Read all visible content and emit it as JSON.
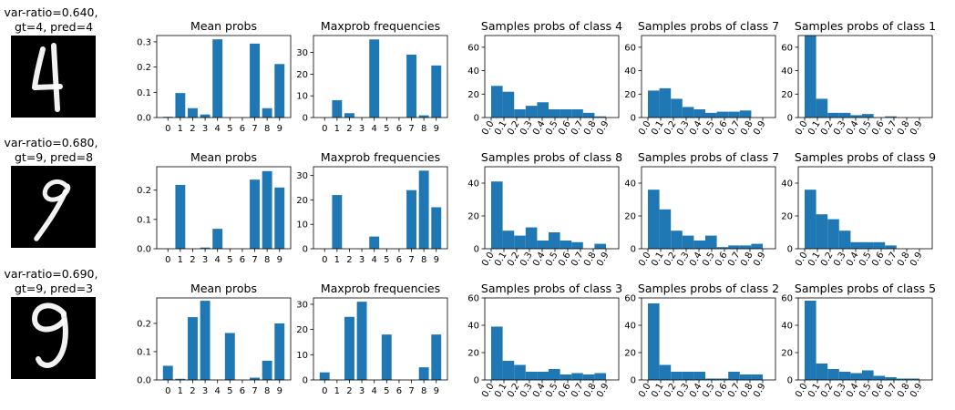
{
  "colors": {
    "bar": "#1f77b4",
    "digit_bg": "#000000",
    "digit_ink": "#ffffff"
  },
  "rows": [
    {
      "label_line1": "var-ratio=0.640,",
      "label_line2": "gt=4, pred=4",
      "digit_icon": "digit-4-image"
    },
    {
      "label_line1": "var-ratio=0.680,",
      "label_line2": "gt=9, pred=8",
      "digit_icon": "digit-9-image"
    },
    {
      "label_line1": "var-ratio=0.690,",
      "label_line2": "gt=9, pred=3",
      "digit_icon": "digit-9-image"
    }
  ],
  "chart_data": [
    {
      "row": 0,
      "col": 0,
      "type": "bar",
      "title": "Mean probs",
      "categories": [
        "0",
        "1",
        "2",
        "3",
        "4",
        "5",
        "6",
        "7",
        "8",
        "9"
      ],
      "values": [
        0.003,
        0.097,
        0.037,
        0.012,
        0.31,
        0.0,
        0.0,
        0.293,
        0.037,
        0.212
      ],
      "ylim": [
        0,
        0.325
      ],
      "yticks": [
        0.0,
        0.1,
        0.2,
        0.3
      ],
      "ytick_labels": [
        "0.0",
        "0.1",
        "0.2",
        "0.3"
      ]
    },
    {
      "row": 0,
      "col": 1,
      "type": "bar",
      "title": "Maxprob frequencies",
      "categories": [
        "0",
        "1",
        "2",
        "3",
        "4",
        "5",
        "6",
        "7",
        "8",
        "9"
      ],
      "values": [
        0,
        8,
        2,
        0,
        36,
        0,
        0,
        29,
        1,
        24
      ],
      "ylim": [
        0,
        37.8
      ],
      "yticks": [
        0,
        10,
        20,
        30
      ],
      "ytick_labels": [
        "0",
        "10",
        "20",
        "30"
      ]
    },
    {
      "row": 0,
      "col": 2,
      "type": "bar",
      "title": "Samples probs of class 4",
      "x_kind": "hist",
      "bins": 10,
      "xlim": [
        -0.05,
        1.0
      ],
      "xtick_labels": [
        "0.0",
        "0.1",
        "0.2",
        "0.3",
        "0.4",
        "0.5",
        "0.6",
        "0.7",
        "0.8",
        "0.9"
      ],
      "values": [
        27,
        22,
        7,
        10,
        13,
        7,
        7,
        7,
        4,
        1
      ],
      "ylim": [
        0,
        70
      ],
      "yticks": [
        0,
        20,
        40,
        60
      ],
      "ytick_labels": [
        "0",
        "20",
        "40",
        "60"
      ]
    },
    {
      "row": 0,
      "col": 3,
      "type": "bar",
      "title": "Samples probs of class 7",
      "x_kind": "hist",
      "bins": 10,
      "xlim": [
        -0.05,
        1.0
      ],
      "xtick_labels": [
        "0.0",
        "0.1",
        "0.2",
        "0.3",
        "0.4",
        "0.5",
        "0.6",
        "0.7",
        "0.8",
        "0.9"
      ],
      "values": [
        23,
        25,
        16,
        9,
        7,
        4,
        5,
        5,
        6,
        0
      ],
      "ylim": [
        0,
        70
      ],
      "yticks": [
        0,
        20,
        40,
        60
      ],
      "ytick_labels": [
        "0",
        "20",
        "40",
        "60"
      ]
    },
    {
      "row": 0,
      "col": 4,
      "type": "bar",
      "title": "Samples probs of class 1",
      "x_kind": "hist",
      "bins": 10,
      "xlim": [
        -0.05,
        1.0
      ],
      "xtick_labels": [
        "0.0",
        "0.1",
        "0.2",
        "0.3",
        "0.4",
        "0.5",
        "0.6",
        "0.7",
        "0.8",
        "0.9"
      ],
      "values": [
        70,
        16,
        4,
        4,
        2,
        3,
        0,
        1,
        0,
        0
      ],
      "ylim": [
        0,
        70
      ],
      "yticks": [
        0,
        20,
        40,
        60
      ],
      "ytick_labels": [
        "0",
        "20",
        "40",
        "60"
      ]
    },
    {
      "row": 1,
      "col": 0,
      "type": "bar",
      "title": "Mean probs",
      "categories": [
        "0",
        "1",
        "2",
        "3",
        "4",
        "5",
        "6",
        "7",
        "8",
        "9"
      ],
      "values": [
        0.0,
        0.218,
        0.0,
        0.004,
        0.068,
        0.0,
        0.0,
        0.236,
        0.265,
        0.209
      ],
      "ylim": [
        0,
        0.28
      ],
      "yticks": [
        0.0,
        0.1,
        0.2
      ],
      "ytick_labels": [
        "0.0",
        "0.1",
        "0.2"
      ]
    },
    {
      "row": 1,
      "col": 1,
      "type": "bar",
      "title": "Maxprob frequencies",
      "categories": [
        "0",
        "1",
        "2",
        "3",
        "4",
        "5",
        "6",
        "7",
        "8",
        "9"
      ],
      "values": [
        0,
        22,
        0,
        0,
        5,
        0,
        0,
        24,
        32,
        17
      ],
      "ylim": [
        0,
        33.6
      ],
      "yticks": [
        0,
        10,
        20,
        30
      ],
      "ytick_labels": [
        "0",
        "10",
        "20",
        "30"
      ]
    },
    {
      "row": 1,
      "col": 2,
      "type": "bar",
      "title": "Samples probs of class 8",
      "x_kind": "hist",
      "bins": 10,
      "xlim": [
        -0.05,
        1.0
      ],
      "xtick_labels": [
        "0.0",
        "0.1",
        "0.2",
        "0.3",
        "0.4",
        "0.5",
        "0.6",
        "0.7",
        "0.8",
        "0.9"
      ],
      "values": [
        41,
        11,
        8,
        13,
        5,
        10,
        5,
        4,
        0,
        3
      ],
      "ylim": [
        0,
        50
      ],
      "yticks": [
        0,
        20,
        40
      ],
      "ytick_labels": [
        "0",
        "20",
        "40"
      ]
    },
    {
      "row": 1,
      "col": 3,
      "type": "bar",
      "title": "Samples probs of class 7",
      "x_kind": "hist",
      "bins": 10,
      "xlim": [
        -0.05,
        1.0
      ],
      "xtick_labels": [
        "0.0",
        "0.1",
        "0.2",
        "0.3",
        "0.4",
        "0.5",
        "0.6",
        "0.7",
        "0.8",
        "0.9"
      ],
      "values": [
        36,
        24,
        11,
        8,
        5,
        8,
        1,
        2,
        2,
        3
      ],
      "ylim": [
        0,
        50
      ],
      "yticks": [
        0,
        20,
        40
      ],
      "ytick_labels": [
        "0",
        "20",
        "40"
      ]
    },
    {
      "row": 1,
      "col": 4,
      "type": "bar",
      "title": "Samples probs of class 9",
      "x_kind": "hist",
      "bins": 10,
      "xlim": [
        -0.05,
        1.0
      ],
      "xtick_labels": [
        "0.0",
        "0.1",
        "0.2",
        "0.3",
        "0.4",
        "0.5",
        "0.6",
        "0.7",
        "0.8",
        "0.9"
      ],
      "values": [
        36,
        21,
        18,
        11,
        4,
        4,
        4,
        2,
        0,
        0
      ],
      "ylim": [
        0,
        50
      ],
      "yticks": [
        0,
        20,
        40
      ],
      "ytick_labels": [
        "0",
        "20",
        "40"
      ]
    },
    {
      "row": 2,
      "col": 0,
      "type": "bar",
      "title": "Mean probs",
      "categories": [
        "0",
        "1",
        "2",
        "3",
        "4",
        "5",
        "6",
        "7",
        "8",
        "9"
      ],
      "values": [
        0.05,
        0.004,
        0.222,
        0.28,
        0.0,
        0.166,
        0.0,
        0.008,
        0.068,
        0.2
      ],
      "ylim": [
        0,
        0.29
      ],
      "yticks": [
        0.0,
        0.1,
        0.2
      ],
      "ytick_labels": [
        "0.0",
        "0.1",
        "0.2"
      ]
    },
    {
      "row": 2,
      "col": 1,
      "type": "bar",
      "title": "Maxprob frequencies",
      "categories": [
        "0",
        "1",
        "2",
        "3",
        "4",
        "5",
        "6",
        "7",
        "8",
        "9"
      ],
      "values": [
        3,
        0,
        25,
        31,
        0,
        18,
        0,
        0,
        5,
        18
      ],
      "ylim": [
        0,
        32.5
      ],
      "yticks": [
        0,
        10,
        20,
        30
      ],
      "ytick_labels": [
        "0",
        "10",
        "20",
        "30"
      ]
    },
    {
      "row": 2,
      "col": 2,
      "type": "bar",
      "title": "Samples probs of class 3",
      "x_kind": "hist",
      "bins": 10,
      "xlim": [
        -0.05,
        1.0
      ],
      "xtick_labels": [
        "0.0",
        "0.1",
        "0.2",
        "0.3",
        "0.4",
        "0.5",
        "0.6",
        "0.7",
        "0.8",
        "0.9"
      ],
      "values": [
        39,
        14,
        11,
        6,
        6,
        8,
        4,
        5,
        4,
        5
      ],
      "ylim": [
        0,
        60
      ],
      "yticks": [
        0,
        20,
        40,
        60
      ],
      "ytick_labels": [
        "0",
        "20",
        "40",
        "60"
      ]
    },
    {
      "row": 2,
      "col": 3,
      "type": "bar",
      "title": "Samples probs of class 2",
      "x_kind": "hist",
      "bins": 10,
      "xlim": [
        -0.05,
        1.0
      ],
      "xtick_labels": [
        "0.0",
        "0.1",
        "0.2",
        "0.3",
        "0.4",
        "0.5",
        "0.6",
        "0.7",
        "0.8",
        "0.9"
      ],
      "values": [
        56,
        11,
        6,
        6,
        6,
        1,
        1,
        6,
        4,
        4
      ],
      "ylim": [
        0,
        60
      ],
      "yticks": [
        0,
        20,
        40,
        60
      ],
      "ytick_labels": [
        "0",
        "20",
        "40",
        "60"
      ]
    },
    {
      "row": 2,
      "col": 4,
      "type": "bar",
      "title": "Samples probs of class 5",
      "x_kind": "hist",
      "bins": 10,
      "xlim": [
        -0.05,
        1.0
      ],
      "xtick_labels": [
        "0.0",
        "0.1",
        "0.2",
        "0.3",
        "0.4",
        "0.5",
        "0.6",
        "0.7",
        "0.8",
        "0.9"
      ],
      "values": [
        58,
        12,
        8,
        6,
        5,
        7,
        3,
        2,
        1,
        1
      ],
      "ylim": [
        0,
        60
      ],
      "yticks": [
        0,
        20,
        40,
        60
      ],
      "ytick_labels": [
        "0",
        "20",
        "40",
        "60"
      ]
    }
  ]
}
